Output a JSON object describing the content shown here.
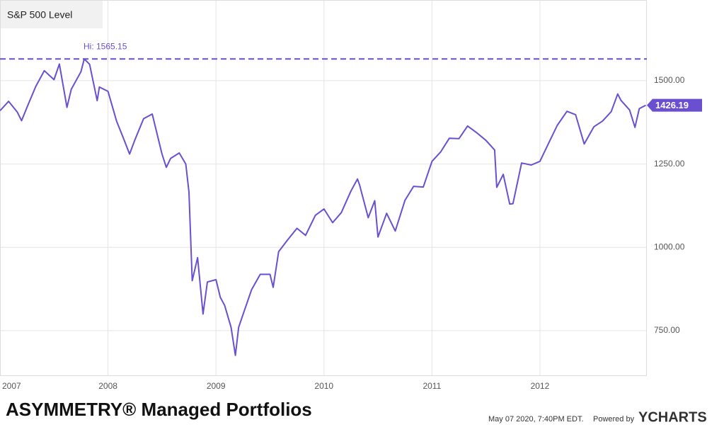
{
  "chart_data": {
    "type": "line",
    "title": "S&P 500 Level",
    "x": [
      2007.0,
      2007.08,
      2007.16,
      2007.2,
      2007.25,
      2007.33,
      2007.41,
      2007.5,
      2007.55,
      2007.62,
      2007.66,
      2007.75,
      2007.78,
      2007.83,
      2007.9,
      2007.92,
      2008.0,
      2008.08,
      2008.14,
      2008.2,
      2008.25,
      2008.33,
      2008.41,
      2008.5,
      2008.54,
      2008.58,
      2008.66,
      2008.72,
      2008.75,
      2008.78,
      2008.83,
      2008.88,
      2008.92,
      2009.0,
      2009.04,
      2009.08,
      2009.14,
      2009.18,
      2009.21,
      2009.25,
      2009.33,
      2009.41,
      2009.5,
      2009.53,
      2009.58,
      2009.66,
      2009.75,
      2009.83,
      2009.92,
      2010.0,
      2010.08,
      2010.16,
      2010.25,
      2010.31,
      2010.33,
      2010.41,
      2010.47,
      2010.5,
      2010.58,
      2010.66,
      2010.75,
      2010.83,
      2010.92,
      2011.0,
      2011.08,
      2011.16,
      2011.25,
      2011.33,
      2011.41,
      2011.5,
      2011.58,
      2011.6,
      2011.66,
      2011.72,
      2011.75,
      2011.83,
      2011.92,
      2012.0,
      2012.08,
      2012.16,
      2012.25,
      2012.33,
      2012.41,
      2012.5,
      2012.58,
      2012.66,
      2012.72,
      2012.75,
      2012.83,
      2012.88,
      2012.92,
      2012.98
    ],
    "series": [
      {
        "name": "S&P 500 Level",
        "color": "#6a4fd0",
        "values": [
          1410,
          1438,
          1406,
          1380,
          1420,
          1482,
          1530,
          1503,
          1550,
          1420,
          1474,
          1527,
          1565.15,
          1549,
          1440,
          1481,
          1468,
          1378,
          1330,
          1280,
          1323,
          1386,
          1400,
          1280,
          1240,
          1267,
          1283,
          1250,
          1166,
          900,
          969,
          800,
          896,
          903,
          850,
          826,
          760,
          676,
          760,
          798,
          873,
          919,
          919,
          880,
          987,
          1021,
          1057,
          1036,
          1096,
          1115,
          1074,
          1104,
          1169,
          1205,
          1187,
          1089,
          1140,
          1031,
          1102,
          1049,
          1141,
          1183,
          1181,
          1258,
          1286,
          1327,
          1326,
          1364,
          1345,
          1321,
          1292,
          1180,
          1219,
          1130,
          1131,
          1253,
          1247,
          1258,
          1312,
          1366,
          1408,
          1398,
          1310,
          1362,
          1379,
          1407,
          1460,
          1441,
          1412,
          1360,
          1416,
          1426.19
        ]
      }
    ],
    "xlim": [
      2007,
      2012.99
    ],
    "ylim": [
      616,
      1742
    ],
    "xticks": [
      2007,
      2008,
      2009,
      2010,
      2011,
      2012
    ],
    "yticks": [
      {
        "value": 750,
        "label": "750.00"
      },
      {
        "value": 1000,
        "label": "1000.00"
      },
      {
        "value": 1250,
        "label": "1250.00"
      },
      {
        "value": 1500,
        "label": "1500.00"
      }
    ],
    "grid": true,
    "annotation": {
      "value": 1565.15,
      "label": "Hi: 1565.15"
    }
  },
  "footer": {
    "brand": "ASYMMETRY® Managed Portfolios",
    "timestamp": "May 07 2020, 7:40PM EDT.",
    "powered": "Powered by",
    "provider": "YCHARTS"
  }
}
